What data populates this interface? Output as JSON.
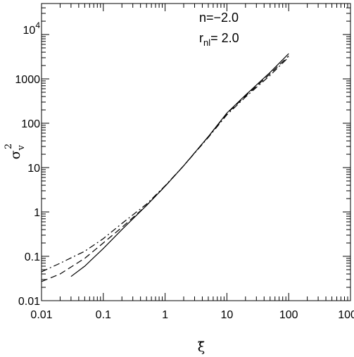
{
  "chart_data": {
    "type": "line",
    "xlabel": "ξ̄",
    "ylabel": "σ",
    "ylabel_sub": "v",
    "ylabel_sup": "2",
    "x_scale": "log",
    "y_scale": "log",
    "xlim": [
      0.01,
      1000
    ],
    "ylim": [
      0.01,
      50000
    ],
    "x_ticks": [
      "0.01",
      "0.1",
      "1",
      "10",
      "100",
      "1000"
    ],
    "y_ticks": [
      "0.01",
      "0.1",
      "1",
      "10",
      "100",
      "1000"
    ],
    "y_tick_top_base": "10",
    "y_tick_top_exp": "4",
    "annotation_line1": "n=−2.0",
    "annotation_line2_main": "r",
    "annotation_line2_sub": "nl",
    "annotation_line2_rest": "=  2.0",
    "grid": false,
    "series": [
      {
        "style": "solid",
        "x": [
          0.03,
          0.05,
          0.1,
          0.2,
          0.5,
          1,
          2,
          5,
          10,
          20,
          50,
          100
        ],
        "y": [
          0.035,
          0.06,
          0.15,
          0.4,
          1.4,
          3.8,
          11,
          50,
          170,
          430,
          1400,
          3700
        ]
      },
      {
        "style": "dashed",
        "x": [
          0.01,
          0.02,
          0.05,
          0.1,
          0.2,
          0.5,
          1,
          2,
          5,
          10,
          20,
          50,
          100
        ],
        "y": [
          0.027,
          0.04,
          0.09,
          0.2,
          0.45,
          1.4,
          3.8,
          11,
          50,
          165,
          410,
          1300,
          3300
        ]
      },
      {
        "style": "dashdot",
        "x": [
          0.01,
          0.02,
          0.05,
          0.1,
          0.2,
          0.5,
          1,
          2,
          5,
          10,
          20,
          50,
          100
        ],
        "y": [
          0.045,
          0.07,
          0.13,
          0.25,
          0.55,
          1.5,
          3.9,
          11,
          48,
          155,
          390,
          1200,
          3100
        ]
      }
    ]
  }
}
